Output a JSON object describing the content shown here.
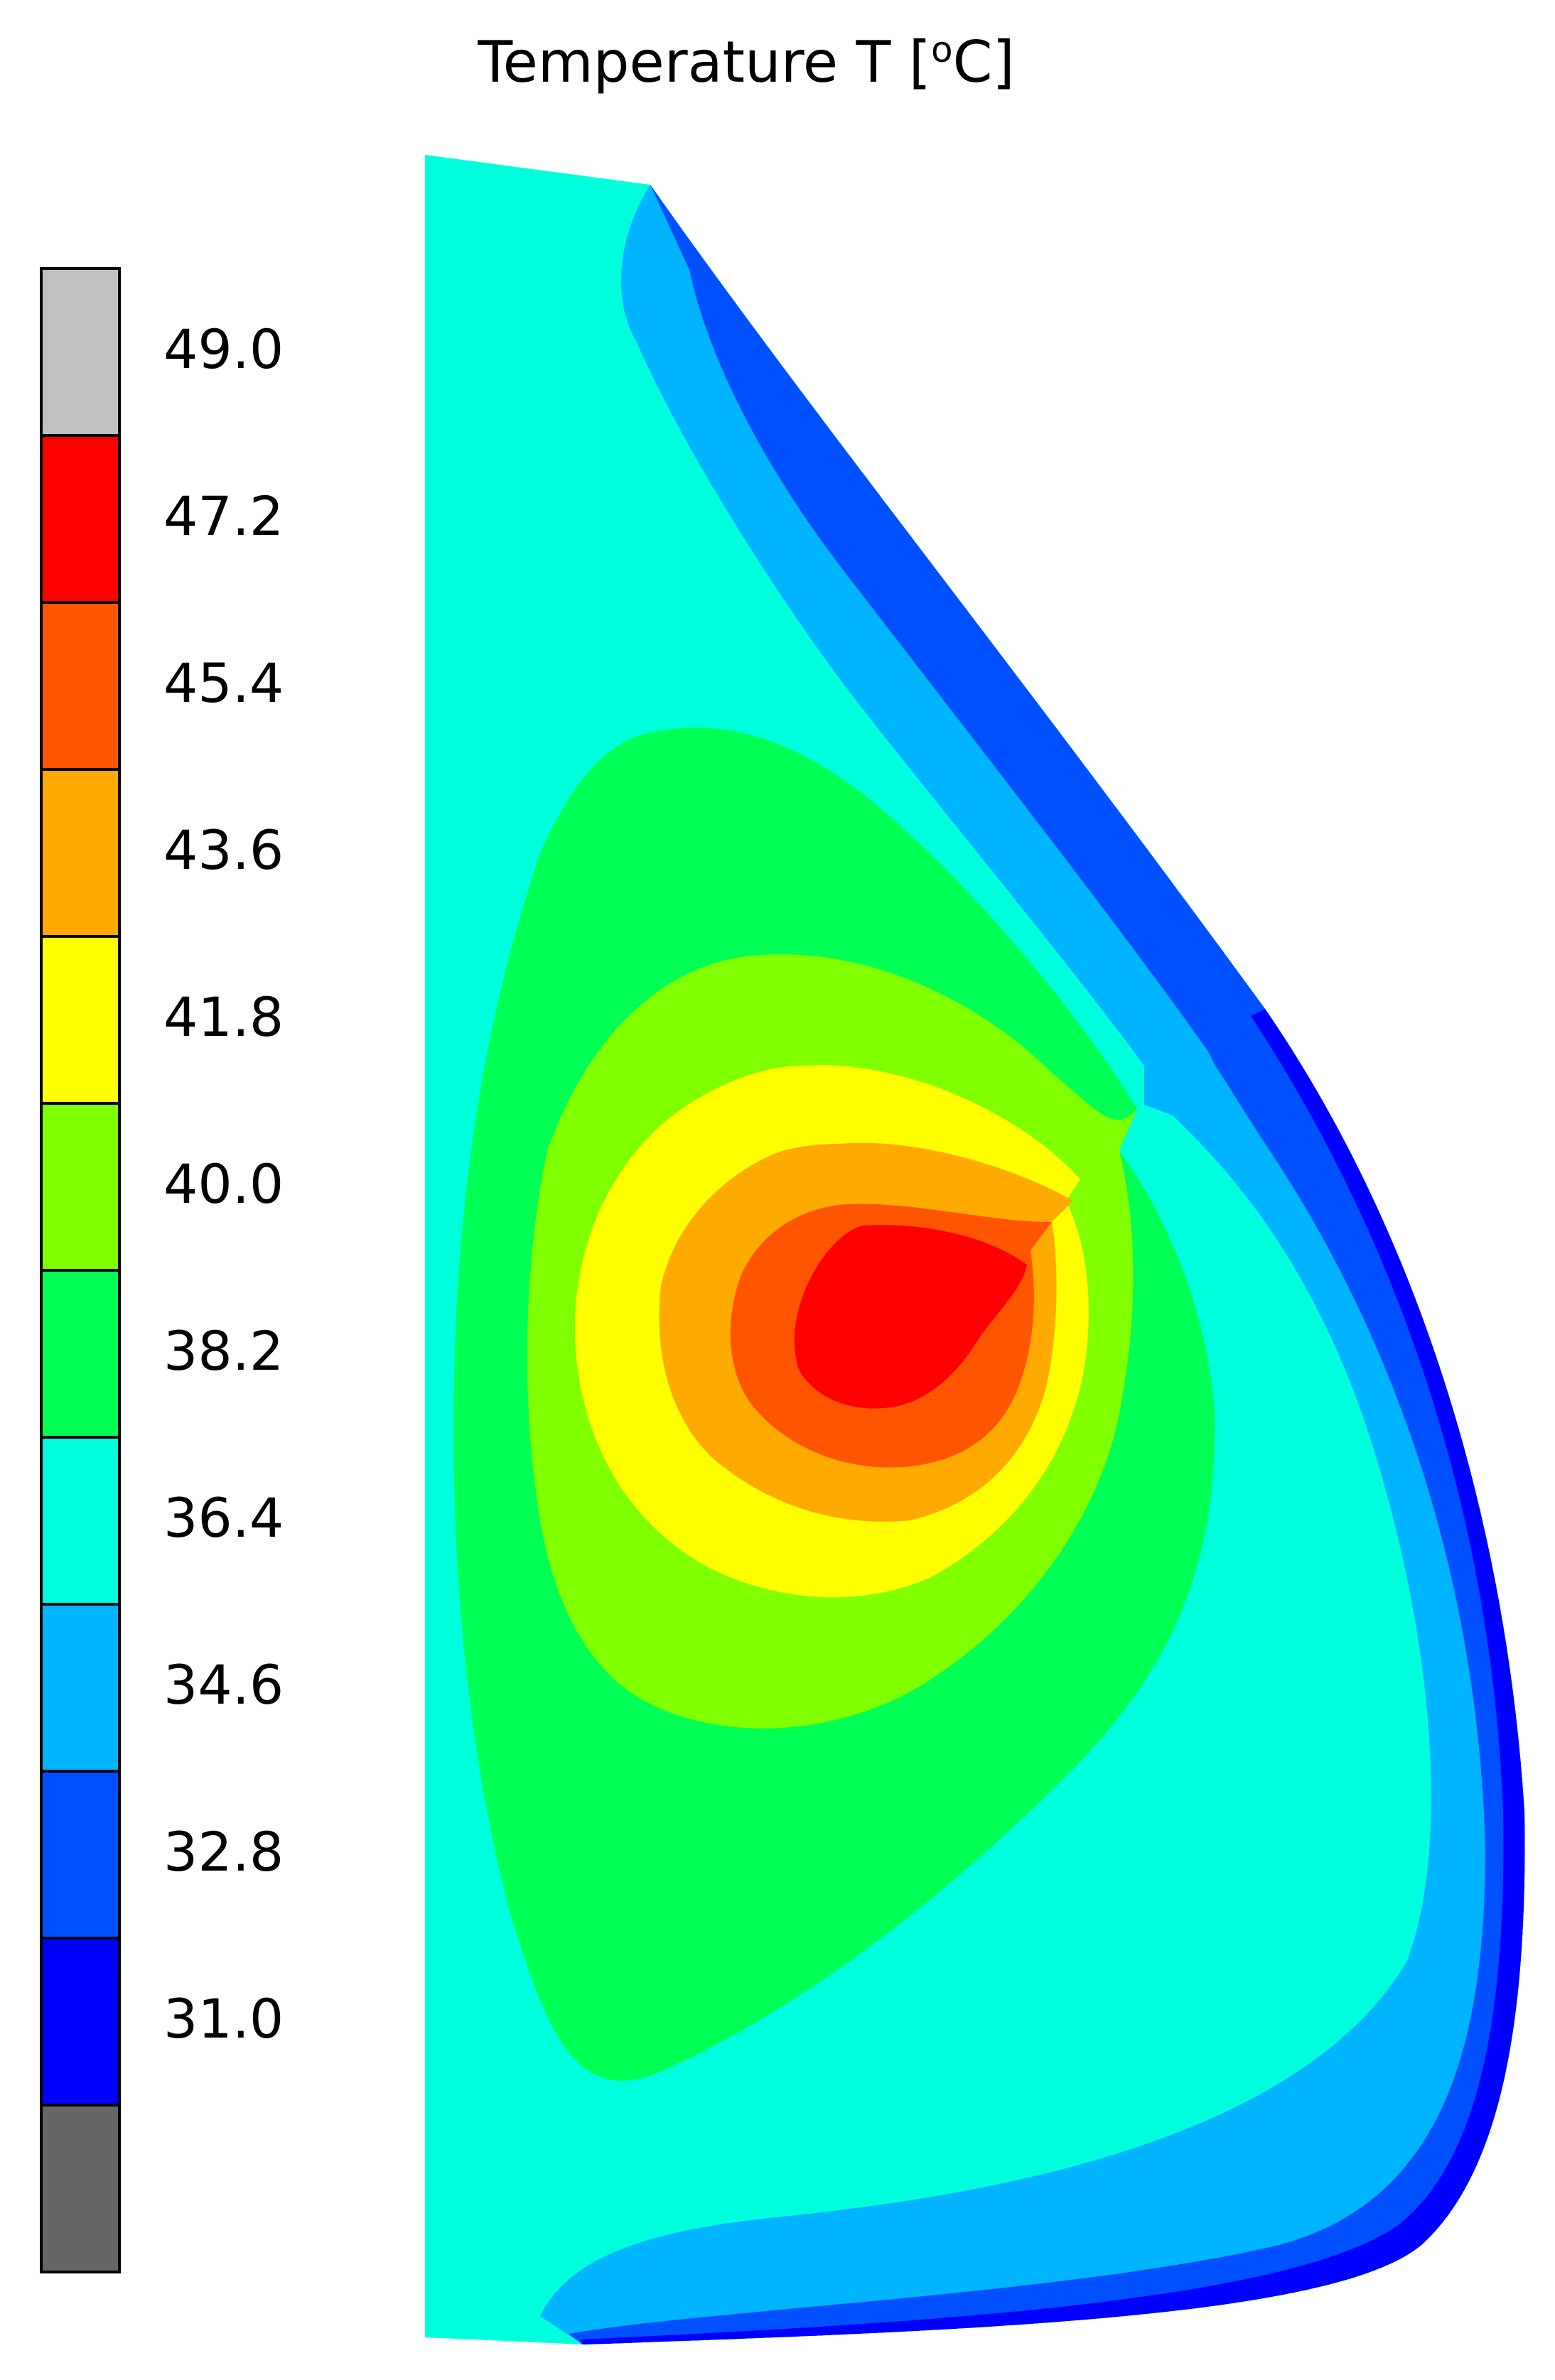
{
  "chart_data": {
    "type": "heatmap",
    "title": "Temperature T [",
    "title_degree": "o",
    "title_unit": "C]",
    "colorbar": {
      "tick_labels": [
        "49.0",
        "47.2",
        "45.4",
        "43.6",
        "41.8",
        "40.0",
        "38.2",
        "36.4",
        "34.6",
        "32.8",
        "31.0"
      ],
      "levels": [
        {
          "lower": 49.0,
          "upper": null,
          "color": "#c0c0c0"
        },
        {
          "lower": 47.2,
          "upper": 49.0,
          "color": "#ff0000"
        },
        {
          "lower": 45.4,
          "upper": 47.2,
          "color": "#ff5500"
        },
        {
          "lower": 43.6,
          "upper": 45.4,
          "color": "#ffaa00"
        },
        {
          "lower": 41.8,
          "upper": 43.6,
          "color": "#ffff00"
        },
        {
          "lower": 40.0,
          "upper": 41.8,
          "color": "#80ff00"
        },
        {
          "lower": 38.2,
          "upper": 40.0,
          "color": "#00ff55"
        },
        {
          "lower": 36.4,
          "upper": 38.2,
          "color": "#00ffdd"
        },
        {
          "lower": 34.6,
          "upper": 36.4,
          "color": "#00b4ff"
        },
        {
          "lower": 32.8,
          "upper": 34.6,
          "color": "#0050ff"
        },
        {
          "lower": 31.0,
          "upper": 32.8,
          "color": "#0000ff"
        },
        {
          "lower": null,
          "upper": 31.0,
          "color": "#666666"
        }
      ]
    },
    "contour_region_colors": {
      "band_36_4": "#00ffdd",
      "band_34_6": "#00b4ff",
      "band_32_8": "#0050ff",
      "band_31_0": "#0000ff",
      "band_38_2": "#00ff55",
      "band_40_0": "#80ff00",
      "band_41_8": "#ffff00",
      "band_43_6": "#ffaa00",
      "band_45_4": "#ff5500",
      "band_47_2": "#ff0000"
    },
    "grid": false,
    "legend": "left"
  }
}
